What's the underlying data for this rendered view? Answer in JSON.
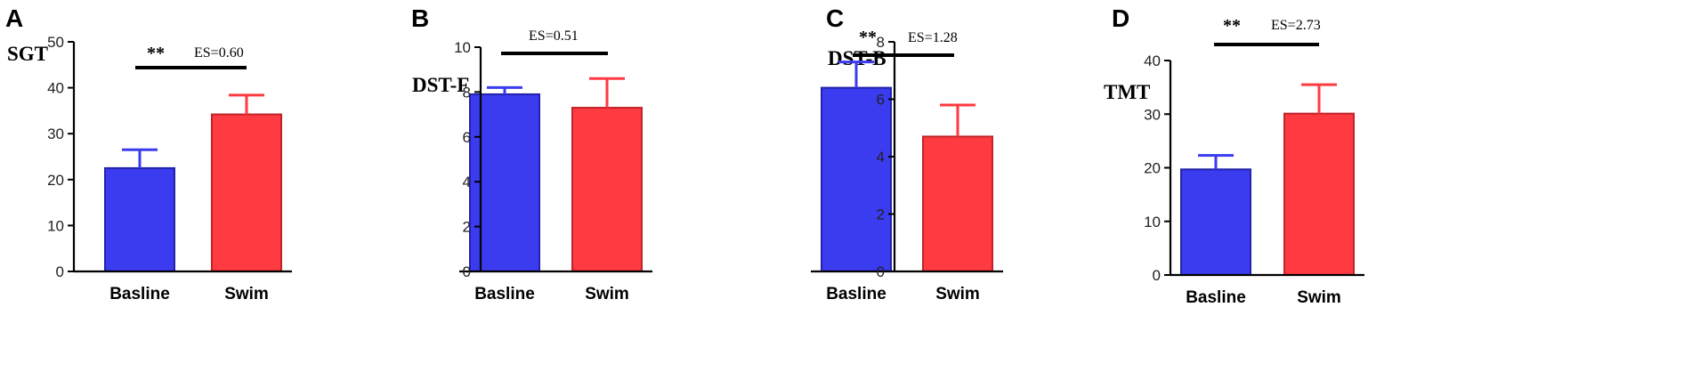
{
  "chart_data": [
    {
      "type": "bar",
      "panel": "A",
      "ylabel": "SGT",
      "categories": [
        "Basline",
        "Swim"
      ],
      "values": [
        22.5,
        34.2
      ],
      "errors": [
        4.0,
        4.2
      ],
      "ylim": [
        0,
        50
      ],
      "yticks": [
        0,
        10,
        20,
        30,
        40,
        50
      ],
      "significance": "**",
      "effect_size": "ES=0.60",
      "colors": [
        "#3b3bf0",
        "#ff3a40"
      ]
    },
    {
      "type": "bar",
      "panel": "B",
      "ylabel": "DST-F",
      "categories": [
        "Basline",
        "Swim"
      ],
      "values": [
        7.9,
        7.3
      ],
      "errors": [
        0.3,
        1.3
      ],
      "ylim": [
        0,
        10
      ],
      "yticks": [
        0,
        2,
        4,
        6,
        8,
        10
      ],
      "significance": "",
      "effect_size": "ES=0.51",
      "colors": [
        "#3b3bf0",
        "#ff3a40"
      ]
    },
    {
      "type": "bar",
      "panel": "C",
      "ylabel": "DST-B",
      "categories": [
        "Basline",
        "Swim"
      ],
      "values": [
        6.4,
        4.7
      ],
      "errors": [
        0.9,
        1.1
      ],
      "ylim": [
        0,
        8
      ],
      "yticks": [
        0,
        2,
        4,
        6,
        8
      ],
      "significance": "**",
      "effect_size": "ES=1.28",
      "colors": [
        "#3b3bf0",
        "#ff3a40"
      ]
    },
    {
      "type": "bar",
      "panel": "D",
      "ylabel": "TMT",
      "categories": [
        "Basline",
        "Swim"
      ],
      "values": [
        19.7,
        30.1
      ],
      "errors": [
        2.6,
        5.4
      ],
      "ylim": [
        0,
        40
      ],
      "yticks": [
        0,
        10,
        20,
        30,
        40
      ],
      "significance": "**",
      "effect_size": "ES=2.73",
      "colors": [
        "#3b3bf0",
        "#ff3a40"
      ]
    }
  ]
}
